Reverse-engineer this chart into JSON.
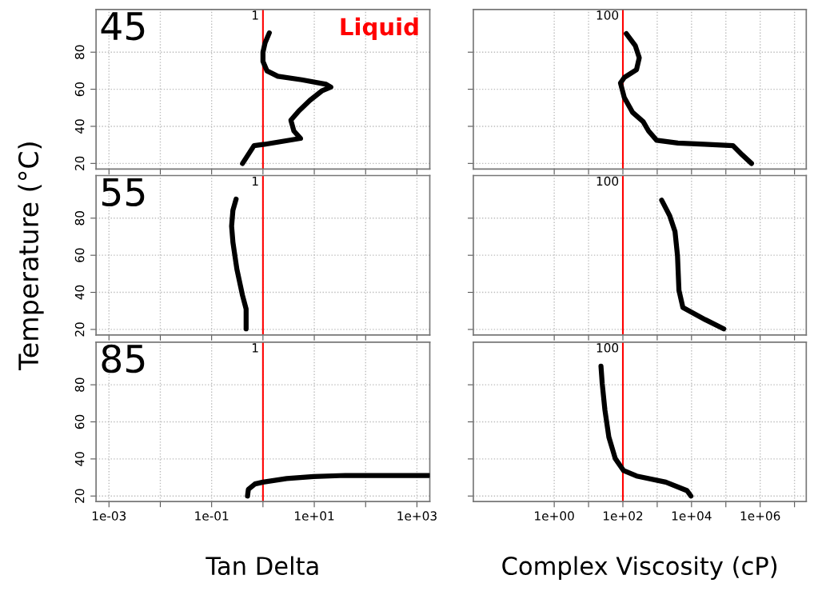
{
  "chart_data": [
    {
      "type": "line",
      "log": "x",
      "annotations": [
        "45",
        "Liquid"
      ],
      "x": [
        0.4,
        0.67,
        1.07,
        5.4,
        4.0,
        3.5,
        5.0,
        8.2,
        14,
        21,
        17,
        5.7,
        1.95,
        1.2,
        1.0,
        1.0,
        1.1,
        1.33
      ],
      "series": [
        {
          "color": "#000000",
          "values": [
            20,
            29.6,
            30.3,
            33.5,
            37.5,
            43.3,
            48.3,
            54,
            59.1,
            61.2,
            62.7,
            65.1,
            67,
            69.9,
            75,
            80,
            85,
            90.4
          ]
        }
      ],
      "xlim": [
        0.00056,
        1780
      ],
      "ylim": [
        17,
        103
      ],
      "xticks": [
        {
          "value": 0.001,
          "label": null
        },
        {
          "value": 0.01,
          "label": null
        },
        {
          "value": 0.1,
          "label": null
        },
        {
          "value": 1,
          "label": null
        },
        {
          "value": 10,
          "label": null
        },
        {
          "value": 100,
          "label": null
        },
        {
          "value": 1000,
          "label": null
        }
      ],
      "yticks": [
        20,
        40,
        60,
        80
      ],
      "ref_lines": [
        {
          "axis": "x",
          "value": 1,
          "label": "1",
          "color": "#ff0000"
        }
      ],
      "grid": true,
      "tick_labels": "y",
      "marker": "none",
      "line_style": "solid"
    },
    {
      "type": "line",
      "log": "x",
      "x": [
        560000,
        300000,
        160000,
        24000,
        4000,
        960,
        560,
        390,
        190,
        110,
        85,
        110,
        250,
        300,
        230,
        126
      ],
      "series": [
        {
          "color": "#000000",
          "values": [
            20,
            24.6,
            29.6,
            30.3,
            31,
            32.5,
            37.5,
            42.5,
            47.6,
            55.5,
            63.4,
            66.3,
            70.6,
            77,
            83.5,
            90
          ]
        }
      ],
      "xlim": [
        0.0044,
        22000000
      ],
      "ylim": [
        17,
        103
      ],
      "xticks": [
        {
          "value": 1,
          "label": null
        },
        {
          "value": 10,
          "label": null
        },
        {
          "value": 100,
          "label": null
        },
        {
          "value": 1000,
          "label": null
        },
        {
          "value": 10000,
          "label": null
        },
        {
          "value": 100000,
          "label": null
        },
        {
          "value": 1000000,
          "label": null
        },
        {
          "value": 10000000,
          "label": null
        }
      ],
      "yticks": [
        {
          "value": 20,
          "label": null
        },
        {
          "value": 40,
          "label": null
        },
        {
          "value": 60,
          "label": null
        },
        {
          "value": 80,
          "label": null
        }
      ],
      "ref_lines": [
        {
          "axis": "x",
          "value": 100,
          "label": "100",
          "color": "#ff0000"
        }
      ],
      "grid": true,
      "tick_labels": false,
      "marker": "none",
      "line_style": "solid"
    },
    {
      "type": "line",
      "log": "x",
      "annotations": [
        "55"
      ],
      "ylabel": "Temperature (°C)",
      "x": [
        0.47,
        0.47,
        0.4,
        0.31,
        0.26,
        0.245,
        0.26,
        0.3
      ],
      "series": [
        {
          "color": "#000000",
          "values": [
            20.3,
            31,
            38.3,
            52.6,
            67,
            75.7,
            84.3,
            90.3
          ]
        }
      ],
      "xlim": [
        0.00056,
        1780
      ],
      "ylim": [
        17,
        103
      ],
      "xticks": [
        {
          "value": 0.001,
          "label": null
        },
        {
          "value": 0.01,
          "label": null
        },
        {
          "value": 0.1,
          "label": null
        },
        {
          "value": 1,
          "label": null
        },
        {
          "value": 10,
          "label": null
        },
        {
          "value": 100,
          "label": null
        },
        {
          "value": 1000,
          "label": null
        }
      ],
      "yticks": [
        20,
        40,
        60,
        80
      ],
      "ref_lines": [
        {
          "axis": "x",
          "value": 1,
          "label": "1",
          "color": "#ff0000"
        }
      ],
      "grid": true,
      "tick_labels": "y",
      "marker": "none",
      "line_style": "solid"
    },
    {
      "type": "line",
      "log": "x",
      "x": [
        87000,
        25000,
        5600,
        4300,
        3900,
        3300,
        2300,
        1350
      ],
      "series": [
        {
          "color": "#000000",
          "values": [
            20.3,
            25.3,
            31.8,
            41.1,
            59.8,
            72.8,
            81.4,
            89.7
          ]
        }
      ],
      "xlim": [
        0.0044,
        22000000
      ],
      "ylim": [
        17,
        103
      ],
      "xticks": [
        {
          "value": 1,
          "label": null
        },
        {
          "value": 10,
          "label": null
        },
        {
          "value": 100,
          "label": null
        },
        {
          "value": 1000,
          "label": null
        },
        {
          "value": 10000,
          "label": null
        },
        {
          "value": 100000,
          "label": null
        },
        {
          "value": 1000000,
          "label": null
        },
        {
          "value": 10000000,
          "label": null
        }
      ],
      "yticks": [
        {
          "value": 20,
          "label": null
        },
        {
          "value": 40,
          "label": null
        },
        {
          "value": 60,
          "label": null
        },
        {
          "value": 80,
          "label": null
        }
      ],
      "ref_lines": [
        {
          "axis": "x",
          "value": 100,
          "label": "100",
          "color": "#ff0000"
        }
      ],
      "grid": true,
      "tick_labels": false,
      "marker": "none",
      "line_style": "solid"
    },
    {
      "type": "line",
      "log": "x",
      "annotations": [
        "85"
      ],
      "xlabel": "Tan Delta",
      "x": [
        0.5,
        0.52,
        0.7,
        1.0,
        2.9,
        9.7,
        40,
        1700
      ],
      "series": [
        {
          "color": "#000000",
          "values": [
            20,
            23.6,
            26.5,
            27.5,
            29.4,
            30.5,
            31.1,
            31.1
          ]
        }
      ],
      "xlim": [
        0.00056,
        1780
      ],
      "ylim": [
        17,
        103
      ],
      "xticks": [
        {
          "value": 0.001,
          "label": "1e-03"
        },
        {
          "value": 0.01,
          "label": null
        },
        {
          "value": 0.1,
          "label": "1e-01"
        },
        {
          "value": 1,
          "label": null
        },
        {
          "value": 10,
          "label": "1e+01"
        },
        {
          "value": 100,
          "label": null
        },
        {
          "value": 1000,
          "label": "1e+03"
        }
      ],
      "yticks": [
        20,
        40,
        60,
        80
      ],
      "ref_lines": [
        {
          "axis": "x",
          "value": 1,
          "label": "1",
          "color": "#ff0000"
        }
      ],
      "grid": true,
      "marker": "none",
      "line_style": "solid"
    },
    {
      "type": "line",
      "log": "x",
      "xlabel": "Complex Viscosity (cP)",
      "x": [
        9600,
        7400,
        1780,
        250,
        105,
        60,
        39,
        30,
        25,
        23
      ],
      "series": [
        {
          "color": "#000000",
          "values": [
            20,
            22.9,
            27.5,
            30.8,
            33.7,
            40.2,
            51.8,
            66.3,
            80.7,
            90
          ]
        }
      ],
      "xlim": [
        0.0044,
        22000000
      ],
      "ylim": [
        17,
        103
      ],
      "xticks": [
        {
          "value": 1,
          "label": "1e+00"
        },
        {
          "value": 10,
          "label": null
        },
        {
          "value": 100,
          "label": "1e+02"
        },
        {
          "value": 1000,
          "label": null
        },
        {
          "value": 10000,
          "label": "1e+04"
        },
        {
          "value": 100000,
          "label": null
        },
        {
          "value": 1000000,
          "label": "1e+06"
        },
        {
          "value": 10000000,
          "label": null
        }
      ],
      "yticks": [
        {
          "value": 20,
          "label": null
        },
        {
          "value": 40,
          "label": null
        },
        {
          "value": 60,
          "label": null
        },
        {
          "value": 80,
          "label": null
        }
      ],
      "ref_lines": [
        {
          "axis": "x",
          "value": 100,
          "label": "100",
          "color": "#ff0000"
        }
      ],
      "grid": true,
      "tick_labels": "x",
      "marker": "none",
      "line_style": "solid"
    }
  ]
}
